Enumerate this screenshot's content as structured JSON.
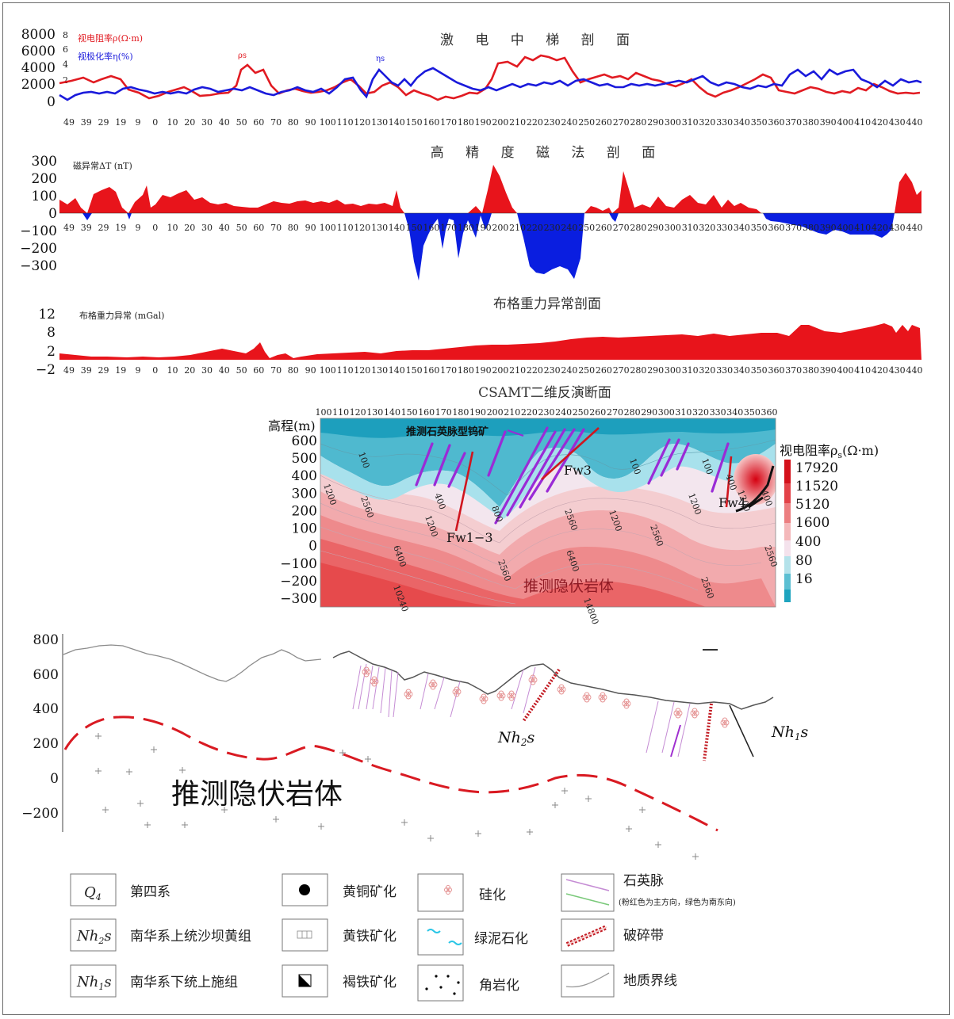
{
  "ip_section": {
    "title": "激 电 中 梯 剖 面",
    "rho_label": "视电阻率ρ",
    "rho_unit": "(Ω·m)",
    "eta_label": "视极化率η",
    "eta_unit": "(%)",
    "rho_curve_tag": "ρs",
    "eta_curve_tag": "ηs",
    "rho_ticks": [
      "8000",
      "6000",
      "4000",
      "2000",
      "0"
    ],
    "eta_ticks": [
      "8",
      "6",
      "4",
      "2"
    ],
    "colors": {
      "rho": "#e11b22",
      "eta": "#1a1adb"
    }
  },
  "station_labels": [
    "49",
    "39",
    "29",
    "19",
    "9",
    "0",
    "10",
    "20",
    "30",
    "40",
    "50",
    "60",
    "70",
    "80",
    "90",
    "100",
    "110",
    "120",
    "130",
    "140",
    "150",
    "160",
    "170",
    "180",
    "190",
    "200",
    "210",
    "220",
    "230",
    "240",
    "250",
    "260",
    "270",
    "280",
    "290",
    "300",
    "310",
    "320",
    "330",
    "340",
    "350",
    "360",
    "370",
    "380",
    "390",
    "400",
    "410",
    "420",
    "430",
    "440"
  ],
  "mag_section": {
    "title": "高 精 度 磁 法 剖 面",
    "ylabel": "磁异常ΔT (nT)",
    "yticks": [
      "300",
      "200",
      "100",
      "0",
      "−100",
      "−200",
      "−300"
    ],
    "colors": {
      "positive": "#e8141b",
      "negative": "#0a1ee0"
    }
  },
  "grav_section": {
    "title": "布格重力异常剖面",
    "ylabel": "布格重力异常 (mGal)",
    "yticks": [
      "12",
      "8",
      "2",
      "−2"
    ],
    "color": "#e8141b"
  },
  "csamt_section": {
    "title": "CSAMT二维反演断面",
    "ylabel": "高程(m)",
    "xticks": [
      "100",
      "110",
      "120",
      "130",
      "140",
      "150",
      "160",
      "170",
      "180",
      "190",
      "200",
      "210",
      "220",
      "230",
      "240",
      "250",
      "260",
      "270",
      "280",
      "290",
      "300",
      "310",
      "320",
      "330",
      "340",
      "350",
      "360"
    ],
    "yticks": [
      "600",
      "500",
      "400",
      "300",
      "200",
      "100",
      "0",
      "−100",
      "−200",
      "−300"
    ],
    "annotation_ore": "推测石英脉型钨矿",
    "annotation_rock": "推测隐伏岩体",
    "fault_labels": [
      "Fw1−3",
      "Fw3",
      "Fw4"
    ],
    "contour_labels": [
      "100",
      "1200",
      "2560",
      "400",
      "1200",
      "800",
      "2560",
      "6400",
      "2560",
      "1200",
      "6400",
      "2560",
      "1200",
      "400",
      "100",
      "1200",
      "2560",
      "10240",
      "14800",
      "400",
      "100",
      "2560"
    ],
    "colorbar_title": "视电阻率ρ",
    "colorbar_unit": "(Ω·m)",
    "colorbar_ticks": [
      "17920",
      "11520",
      "5120",
      "1600",
      "400",
      "80",
      "16"
    ]
  },
  "geo_section": {
    "yticks": [
      "800",
      "600",
      "400",
      "200",
      "0",
      "−200"
    ],
    "annotation_rock": "推测隐伏岩体",
    "unit_nh2s": "Nh2s",
    "unit_nh1s": "Nh1s"
  },
  "legend": {
    "items": [
      {
        "symbol": "Q4",
        "label": "第四系"
      },
      {
        "symbol": "Nh2s",
        "label": "南华系上统沙坝黄组"
      },
      {
        "symbol": "Nh1s",
        "label": "南华系下统上施组"
      },
      {
        "symbol": "chalcopyrite",
        "label": "黄铜矿化"
      },
      {
        "symbol": "pyrite",
        "label": "黄铁矿化"
      },
      {
        "symbol": "limonite",
        "label": "褐铁矿化"
      },
      {
        "symbol": "silicification",
        "label": "硅化"
      },
      {
        "symbol": "chlorite",
        "label": "绿泥石化"
      },
      {
        "symbol": "hornfels",
        "label": "角岩化"
      },
      {
        "symbol": "quartz-vein",
        "label": "石英脉",
        "note": "(粉红色为主方向，绿色为南东向)"
      },
      {
        "symbol": "fracture-zone",
        "label": "破碎带"
      },
      {
        "symbol": "boundary",
        "label": "地质界线"
      }
    ]
  }
}
